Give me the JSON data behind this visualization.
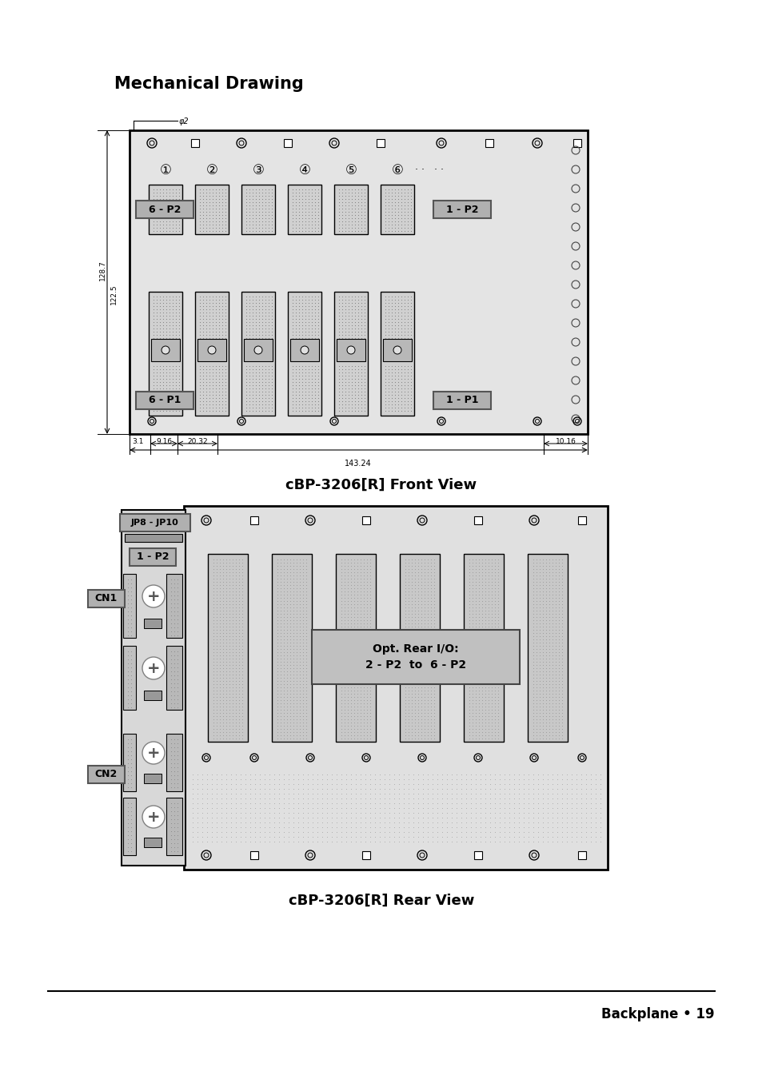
{
  "title": "Mechanical Drawing",
  "front_view_title": "cBP-3206[R] Front View",
  "rear_view_title": "cBP-3206[R] Rear View",
  "footer_text": "Backplane • 19",
  "bg_color": "#ffffff",
  "label_6p2": "6 - P2",
  "label_1p2": "1 - P2",
  "label_6p1": "6 - P1",
  "label_1p1": "1 - P1",
  "label_jp8_jp10": "JP8 - JP10",
  "label_1p2_rear": "1 - P2",
  "label_cn1": "CN1",
  "label_cn2": "CN2",
  "label_opt": "Opt. Rear I/O:\n2 - P2  to  6 - P2",
  "dim_128_7": "128.7",
  "dim_122_5": "122.5",
  "dim_9_16": "9.16",
  "dim_20_32": "20.32",
  "dim_143_24": "143.24",
  "dim_10_16": "10.16",
  "dim_3_1": "3.1",
  "dim_phi2": "φ2"
}
